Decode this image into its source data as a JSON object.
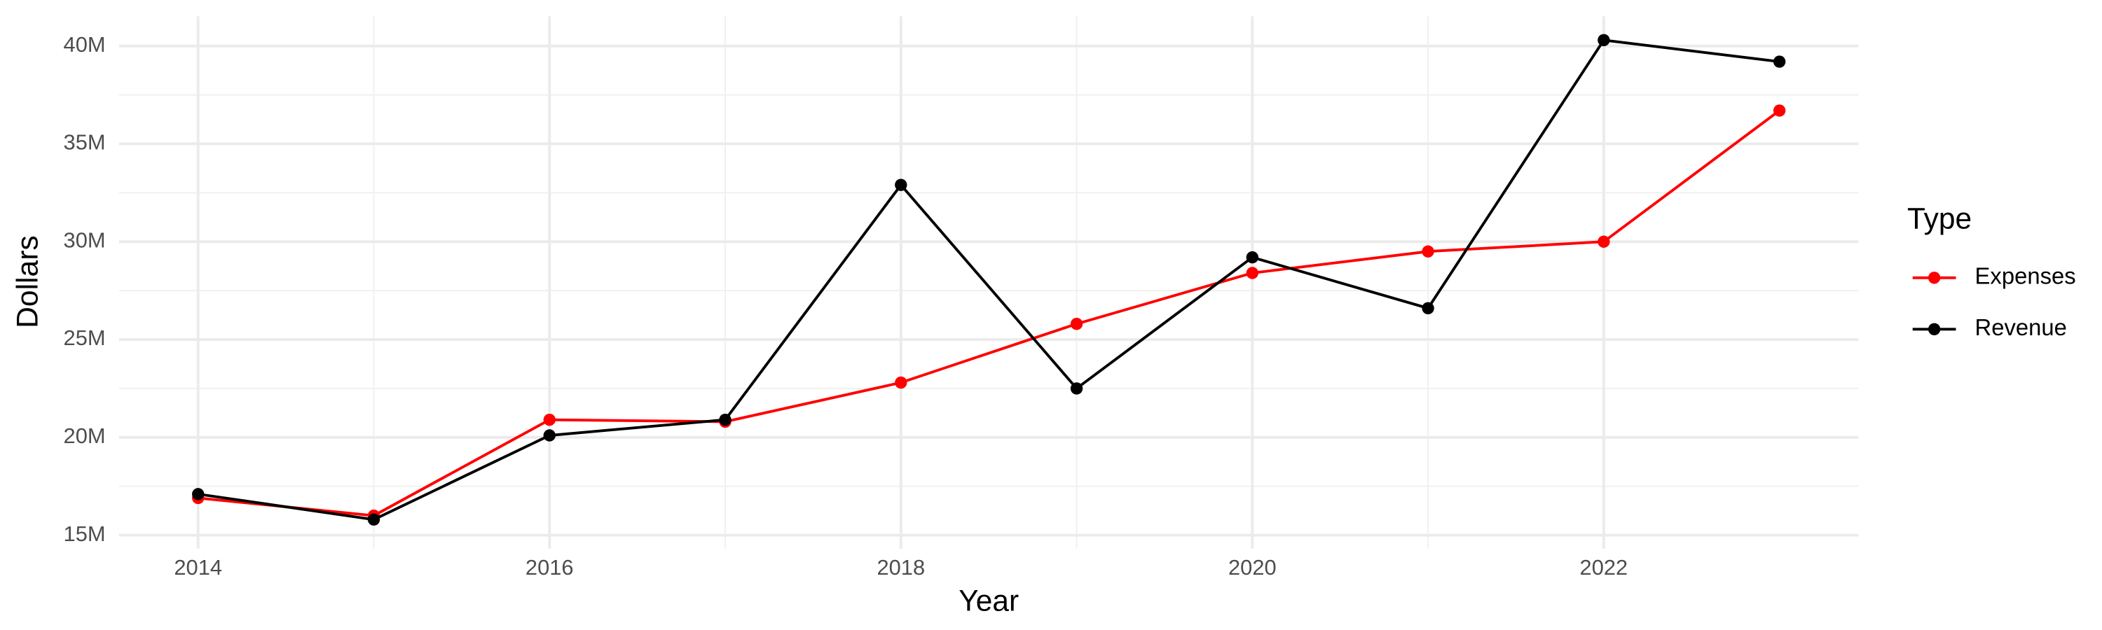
{
  "chart_data": {
    "type": "line",
    "x_label": "Year",
    "y_label": "Dollars",
    "legend_title": "Type",
    "legend_position": "right",
    "grid": true,
    "x": [
      2014,
      2015,
      2016,
      2017,
      2018,
      2019,
      2020,
      2021,
      2022,
      2023
    ],
    "series": [
      {
        "name": "Expenses",
        "color": "#ff0000",
        "values": [
          16900000,
          16000000,
          20900000,
          20800000,
          22800000,
          25800000,
          28400000,
          29500000,
          30000000,
          36700000
        ]
      },
      {
        "name": "Revenue",
        "color": "#000000",
        "values": [
          17100000,
          15800000,
          20100000,
          20900000,
          32900000,
          22500000,
          29200000,
          26600000,
          40300000,
          39200000
        ]
      }
    ],
    "xlim": [
      2013.55,
      2023.45
    ],
    "xticks": [
      2014,
      2016,
      2018,
      2020,
      2022
    ],
    "ylim": [
      14310000,
      41520000
    ],
    "yticks": [
      {
        "value": 15000000,
        "label": "15M"
      },
      {
        "value": 20000000,
        "label": "20M"
      },
      {
        "value": 25000000,
        "label": "25M"
      },
      {
        "value": 30000000,
        "label": "30M"
      },
      {
        "value": 35000000,
        "label": "35M"
      },
      {
        "value": 40000000,
        "label": "40M"
      }
    ]
  }
}
